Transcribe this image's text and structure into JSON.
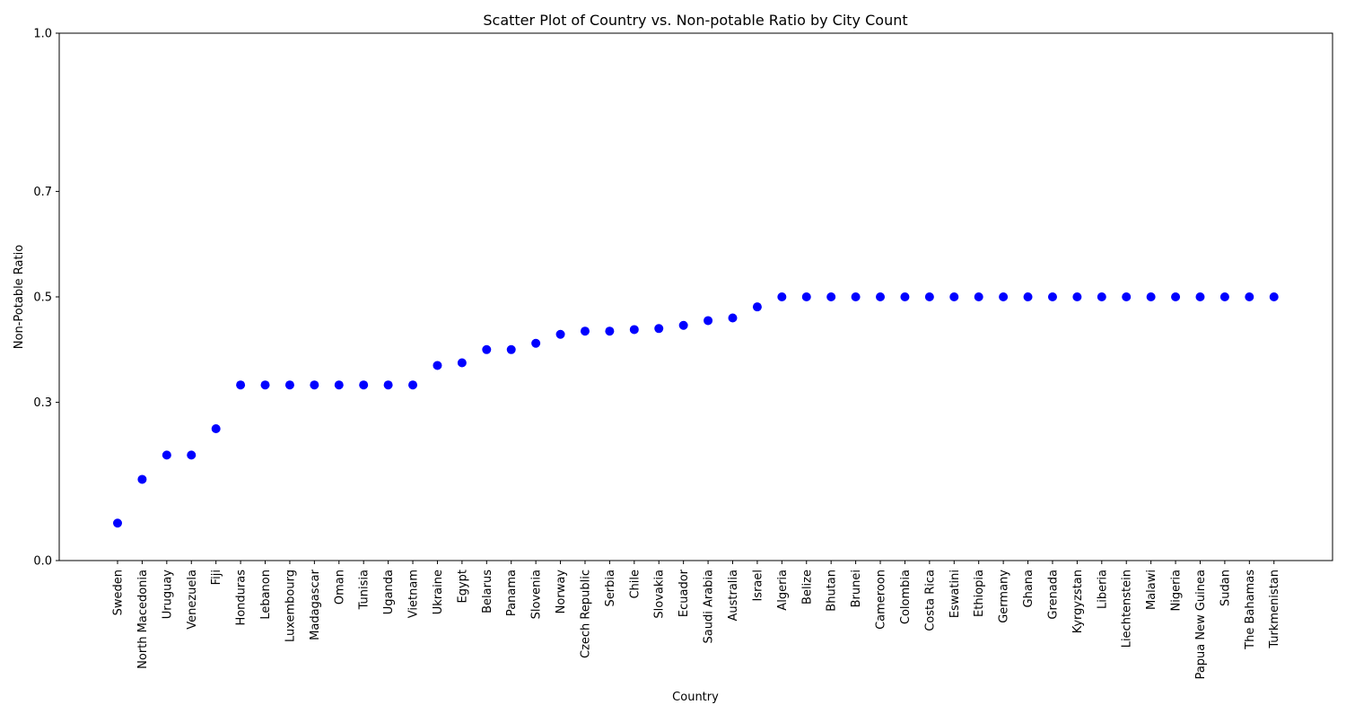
{
  "chart_data": {
    "type": "scatter",
    "title": "Scatter Plot of Country vs. Non-potable Ratio by City Count",
    "xlabel": "Country",
    "ylabel": "Non-Potable Ratio",
    "ylim": [
      0.0,
      1.0
    ],
    "yticks": [
      0.0,
      0.3,
      0.5,
      0.7,
      1.0
    ],
    "ytick_labels": [
      "0.0",
      "0.3",
      "0.5",
      "0.7",
      "1.0"
    ],
    "grid": false,
    "legend": "none",
    "marker_color": "#0000ff",
    "categories": [
      "Sweden",
      "North Macedonia",
      "Uruguay",
      "Venezuela",
      "Fiji",
      "Honduras",
      "Lebanon",
      "Luxembourg",
      "Madagascar",
      "Oman",
      "Tunisia",
      "Uganda",
      "Vietnam",
      "Ukraine",
      "Egypt",
      "Belarus",
      "Panama",
      "Slovenia",
      "Norway",
      "Czech Republic",
      "Serbia",
      "Chile",
      "Slovakia",
      "Ecuador",
      "Saudi Arabia",
      "Australia",
      "Israel",
      "Algeria",
      "Belize",
      "Bhutan",
      "Brunei",
      "Cameroon",
      "Colombia",
      "Costa Rica",
      "Eswatini",
      "Ethiopia",
      "Germany",
      "Ghana",
      "Grenada",
      "Kyrgyzstan",
      "Liberia",
      "Liechtenstein",
      "Malawi",
      "Nigeria",
      "Papua New Guinea",
      "Sudan",
      "The Bahamas",
      "Turkmenistan"
    ],
    "values": [
      0.071,
      0.154,
      0.2,
      0.2,
      0.25,
      0.333,
      0.333,
      0.333,
      0.333,
      0.333,
      0.333,
      0.333,
      0.333,
      0.37,
      0.375,
      0.4,
      0.4,
      0.412,
      0.429,
      0.435,
      0.435,
      0.438,
      0.44,
      0.446,
      0.455,
      0.46,
      0.481,
      0.5,
      0.5,
      0.5,
      0.5,
      0.5,
      0.5,
      0.5,
      0.5,
      0.5,
      0.5,
      0.5,
      0.5,
      0.5,
      0.5,
      0.5,
      0.5,
      0.5,
      0.5,
      0.5,
      0.5,
      0.5
    ]
  }
}
